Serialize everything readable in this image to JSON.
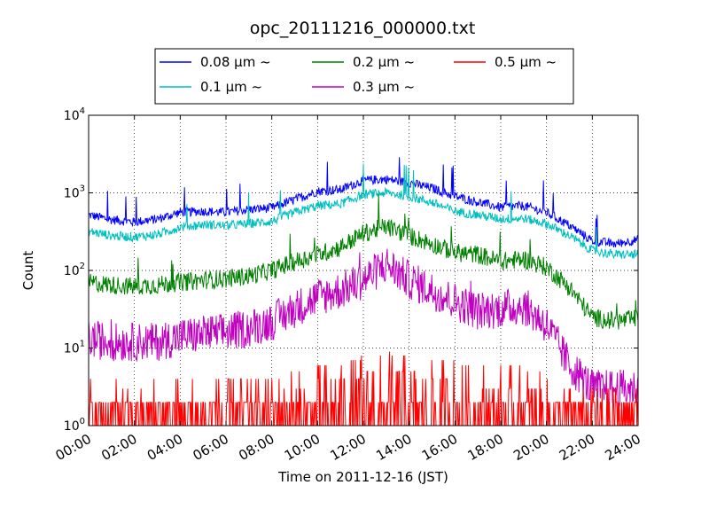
{
  "chart_data": {
    "type": "line",
    "title": "opc_20111216_000000.txt",
    "xlabel": "Time on 2011-12-16 (JST)",
    "ylabel": "Count",
    "yscale": "log",
    "xlim": [
      0,
      24
    ],
    "ylim": [
      1,
      10000
    ],
    "grid": true,
    "legend_position": "top",
    "x_tick_values": [
      0,
      2,
      4,
      6,
      8,
      10,
      12,
      14,
      16,
      18,
      20,
      22,
      24
    ],
    "x_tick_labels": [
      "00:00",
      "02:00",
      "04:00",
      "06:00",
      "08:00",
      "10:00",
      "12:00",
      "14:00",
      "16:00",
      "18:00",
      "20:00",
      "22:00",
      "24:00"
    ],
    "y_tick_values": [
      1,
      10,
      100,
      1000,
      10000
    ],
    "y_tick_labels": [
      {
        "base": "10",
        "exp": "0"
      },
      {
        "base": "10",
        "exp": "1"
      },
      {
        "base": "10",
        "exp": "2"
      },
      {
        "base": "10",
        "exp": "3"
      },
      {
        "base": "10",
        "exp": "4"
      }
    ],
    "x": [
      0,
      1,
      2,
      3,
      4,
      5,
      6,
      7,
      8,
      9,
      10,
      11,
      12,
      13,
      14,
      15,
      16,
      17,
      18,
      19,
      20,
      21,
      22,
      23,
      24
    ],
    "series": [
      {
        "name": "0.08 μm ~",
        "color": "#0000ff",
        "values": [
          520,
          450,
          420,
          460,
          560,
          580,
          560,
          610,
          640,
          820,
          1050,
          1100,
          1450,
          1500,
          1350,
          1150,
          900,
          760,
          650,
          680,
          560,
          380,
          240,
          220,
          250
        ]
      },
      {
        "name": "0.1 μm ~",
        "color": "#00bfbf",
        "values": [
          320,
          280,
          270,
          290,
          360,
          390,
          380,
          400,
          430,
          560,
          680,
          720,
          950,
          1000,
          900,
          750,
          580,
          520,
          460,
          470,
          400,
          280,
          180,
          160,
          160
        ]
      },
      {
        "name": "0.2 μm ~",
        "color": "#008000",
        "values": [
          70,
          65,
          62,
          65,
          70,
          75,
          78,
          85,
          100,
          130,
          160,
          200,
          300,
          370,
          280,
          220,
          170,
          160,
          130,
          140,
          110,
          60,
          25,
          22,
          24
        ]
      },
      {
        "name": "0.3 μm ~",
        "color": "#bf00bf",
        "values": [
          13,
          12,
          12,
          12,
          14,
          15,
          16,
          18,
          22,
          32,
          45,
          55,
          75,
          120,
          75,
          55,
          40,
          30,
          32,
          35,
          20,
          6,
          3,
          3,
          3
        ]
      },
      {
        "name": "0.5 μm ~",
        "color": "#ff0000",
        "values": [
          1.5,
          1.5,
          1.4,
          1.5,
          1.5,
          1.5,
          1.5,
          1.6,
          1.6,
          2.2,
          2.5,
          2.5,
          3.2,
          3.6,
          3.3,
          3,
          2.8,
          2.5,
          2.3,
          2.3,
          1.8,
          1.3,
          1.1,
          1.1,
          1.1
        ]
      }
    ]
  }
}
